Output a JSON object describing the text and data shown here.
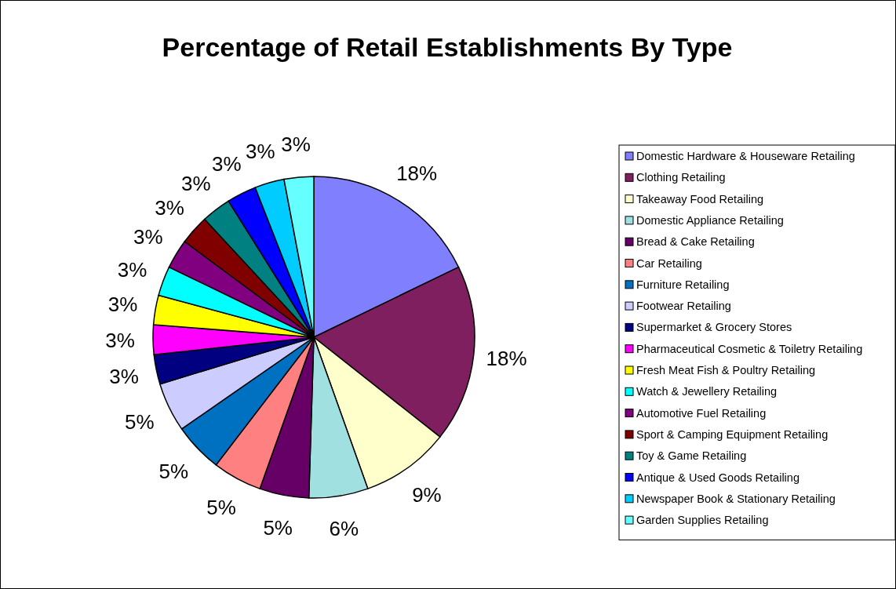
{
  "chart_data": {
    "type": "pie",
    "title": "Percentage of Retail Establishments By Type",
    "categories": [
      "Domestic Hardware & Houseware Retailing",
      "Clothing Retailing",
      "Takeaway Food Retailing",
      "Domestic Appliance Retailing",
      "Bread & Cake Retailing",
      "Car Retailing",
      "Furniture Retailing",
      "Footwear Retailing",
      "Supermarket & Grocery Stores",
      "Pharmaceutical Cosmetic & Toiletry Retailing",
      "Fresh Meat Fish & Poultry Retailing",
      "Watch & Jewellery Retailing",
      "Automotive Fuel Retailing",
      "Sport & Camping Equipment Retailing",
      "Toy & Game Retailing",
      "Antique & Used Goods Retailing",
      "Newspaper Book & Stationary Retailing",
      "Garden Supplies Retailing"
    ],
    "values": [
      18,
      18,
      9,
      6,
      5,
      5,
      5,
      5,
      3,
      3,
      3,
      3,
      3,
      3,
      3,
      3,
      3,
      3
    ],
    "colors": [
      "#8080ff",
      "#7f1f5f",
      "#ffffcc",
      "#a0e0e0",
      "#660066",
      "#ff8080",
      "#0070c0",
      "#ccccff",
      "#000080",
      "#ff00ff",
      "#ffff00",
      "#00ffff",
      "#800080",
      "#800000",
      "#008080",
      "#0000ff",
      "#00ccff",
      "#66ffff"
    ],
    "value_labels": [
      "18%",
      "18%",
      "9%",
      "6%",
      "5%",
      "5%",
      "5%",
      "5%",
      "3%",
      "3%",
      "3%",
      "3%",
      "3%",
      "3%",
      "3%",
      "3%",
      "3%",
      "3%"
    ],
    "legend": "right"
  }
}
